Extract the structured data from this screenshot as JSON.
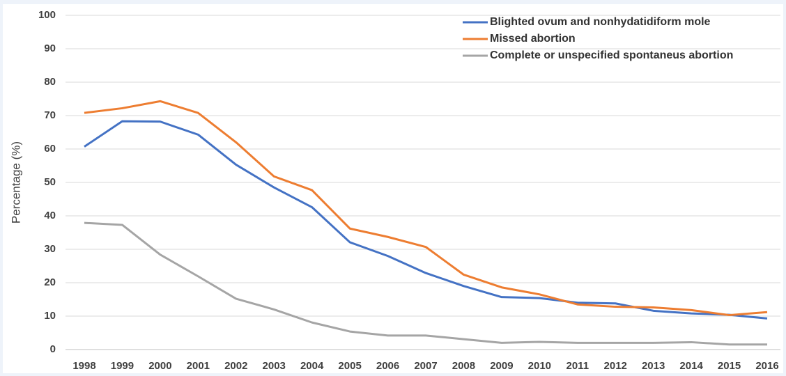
{
  "chart_data": {
    "type": "line",
    "y_label": "Percentage (%)",
    "x": [
      "1998",
      "1999",
      "2000",
      "2001",
      "2002",
      "2003",
      "2004",
      "2005",
      "2006",
      "2007",
      "2008",
      "2009",
      "2010",
      "2011",
      "2012",
      "2013",
      "2014",
      "2015",
      "2016"
    ],
    "series": [
      {
        "name": "Blighted ovum and nonhydatidiform mole",
        "color": "#4472c4",
        "values": [
          60.7,
          68.3,
          68.2,
          64.3,
          55.3,
          48.5,
          42.6,
          32.1,
          28.0,
          22.9,
          19.0,
          15.7,
          15.4,
          14.0,
          13.8,
          11.6,
          10.8,
          10.4,
          9.3
        ]
      },
      {
        "name": "Missed abortion",
        "color": "#ed7d31",
        "values": [
          70.8,
          72.2,
          74.3,
          70.8,
          62.0,
          51.8,
          47.7,
          36.2,
          33.7,
          30.7,
          22.4,
          18.6,
          16.5,
          13.5,
          12.8,
          12.6,
          11.8,
          10.3,
          11.2
        ]
      },
      {
        "name": "Complete or unspecified spontaneus abortion",
        "color": "#a5a5a5",
        "values": [
          37.9,
          37.3,
          28.4,
          21.9,
          15.2,
          12.0,
          8.1,
          5.4,
          4.2,
          4.2,
          3.1,
          2.0,
          2.3,
          2.0,
          2.0,
          2.0,
          2.2,
          1.5,
          1.5
        ]
      }
    ],
    "ylim": [
      0,
      100
    ],
    "yticks": [
      0,
      10,
      20,
      30,
      40,
      50,
      60,
      70,
      80,
      90,
      100
    ],
    "grid": true
  }
}
